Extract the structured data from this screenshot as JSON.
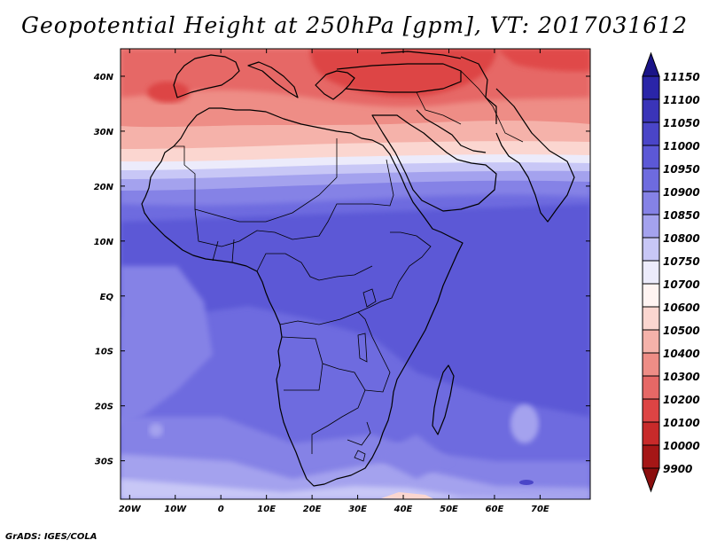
{
  "title": "Geopotential Height at 250hPa [gpm], VT: 2017031612",
  "credit": "GrADS: IGES/COLA",
  "map": {
    "lon_range": [
      -22,
      81
    ],
    "lat_range": [
      -37,
      45
    ],
    "lon_ticks": [
      {
        "lon": -20,
        "label": "20W"
      },
      {
        "lon": -10,
        "label": "10W"
      },
      {
        "lon": 0,
        "label": "0"
      },
      {
        "lon": 10,
        "label": "10E"
      },
      {
        "lon": 20,
        "label": "20E"
      },
      {
        "lon": 30,
        "label": "30E"
      },
      {
        "lon": 40,
        "label": "40E"
      },
      {
        "lon": 50,
        "label": "50E"
      },
      {
        "lon": 60,
        "label": "60E"
      },
      {
        "lon": 70,
        "label": "70E"
      }
    ],
    "lat_ticks": [
      {
        "lat": 40,
        "label": "40N"
      },
      {
        "lat": 30,
        "label": "30N"
      },
      {
        "lat": 20,
        "label": "20N"
      },
      {
        "lat": 10,
        "label": "10N"
      },
      {
        "lat": 0,
        "label": "EQ"
      },
      {
        "lat": -10,
        "label": "10S"
      },
      {
        "lat": -20,
        "label": "20S"
      },
      {
        "lat": -30,
        "label": "30S"
      }
    ]
  },
  "colorbar": {
    "levels": [
      "11150",
      "11100",
      "11050",
      "11000",
      "10950",
      "10900",
      "10850",
      "10800",
      "10750",
      "10700",
      "10600",
      "10500",
      "10400",
      "10300",
      "10200",
      "10100",
      "10000",
      "9900"
    ],
    "colors": [
      "#1a1488",
      "#2a25a8",
      "#3a34b8",
      "#4a45c8",
      "#5c58d6",
      "#6e6bdf",
      "#8582e6",
      "#a4a2ee",
      "#c8c7f6",
      "#ecebfb",
      "#fff4f2",
      "#fbd6d0",
      "#f5b2aa",
      "#ee8d86",
      "#e66866",
      "#dd4444",
      "#c82a2a",
      "#a51616",
      "#8b0e0e"
    ]
  },
  "field_colors": {
    "band_6a": "#6e6bdf",
    "band_5c": "#5c58d6",
    "band_85": "#8582e6",
    "band_a4": "#a4a2ee",
    "band_c8": "#c8c7f6",
    "band_ec": "#ecebfb",
    "band_pink_light": "#fbd6d0",
    "band_pink": "#f5b2aa",
    "band_salmon": "#ee8d86",
    "band_red": "#e66866",
    "band_deep_red": "#dd4444"
  }
}
